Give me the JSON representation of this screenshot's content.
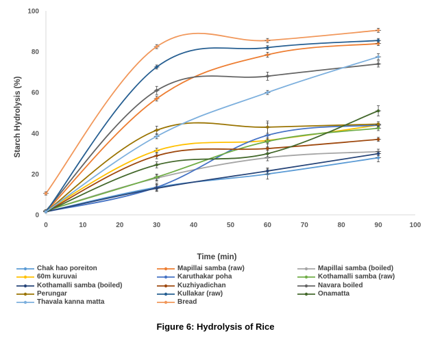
{
  "caption": "Figure  6: Hydrolysis of Rice",
  "chart_data": {
    "type": "line",
    "xlabel": "Time (min)",
    "ylabel": "Starch Hydrolysis (%)",
    "xlim": [
      0,
      100
    ],
    "ylim": [
      0,
      100
    ],
    "xticks": [
      0,
      10,
      20,
      30,
      40,
      50,
      60,
      70,
      80,
      90,
      100
    ],
    "yticks": [
      0,
      20,
      40,
      60,
      80,
      100
    ],
    "grid": false,
    "legend_position": "bottom",
    "x": [
      0,
      30,
      60,
      90
    ],
    "series": [
      {
        "name": "Chak hao poreiton",
        "color": "#5b9bd5",
        "values": [
          1.5,
          13.5,
          20,
          28
        ],
        "errors": [
          0.5,
          1.5,
          2.5,
          2
        ]
      },
      {
        "name": "Mapillai samba (raw)",
        "color": "#ed7d31",
        "values": [
          1.5,
          57,
          78.5,
          84
        ],
        "errors": [
          0.5,
          1.2,
          1.2,
          1
        ]
      },
      {
        "name": "Mapillai samba (boiled)",
        "color": "#a5a5a5",
        "values": [
          2,
          18,
          28,
          31
        ],
        "errors": [
          0.5,
          1.5,
          1.5,
          1.2
        ]
      },
      {
        "name": "60m kuruvai",
        "color": "#ffc000",
        "values": [
          2,
          31.5,
          36.5,
          44
        ],
        "errors": [
          0.5,
          1.2,
          1.2,
          1
        ]
      },
      {
        "name": "Karuthakar poha",
        "color": "#4472c4",
        "values": [
          1.5,
          13.5,
          39,
          44
        ],
        "errors": [
          0.5,
          2,
          6,
          1
        ]
      },
      {
        "name": "Kothamalli samba (raw)",
        "color": "#70ad47",
        "values": [
          2,
          18.5,
          36,
          42.5
        ],
        "errors": [
          0.5,
          1.5,
          1.2,
          1.2
        ]
      },
      {
        "name": "Kothamalli samba (boiled)",
        "color": "#264478",
        "values": [
          1.5,
          13,
          21.5,
          30
        ],
        "errors": [
          0.5,
          1.5,
          1.5,
          1
        ]
      },
      {
        "name": "Kuzhiyadichan",
        "color": "#9e480e",
        "values": [
          1.5,
          29,
          32.5,
          37
        ],
        "errors": [
          0.5,
          1.5,
          1,
          1
        ]
      },
      {
        "name": "Navara boiled",
        "color": "#636363",
        "values": [
          2,
          61,
          68,
          74
        ],
        "errors": [
          0.5,
          2,
          2,
          1.5
        ]
      },
      {
        "name": "Perungar",
        "color": "#997300",
        "values": [
          1.5,
          41.5,
          43,
          44.5
        ],
        "errors": [
          0.5,
          2,
          3,
          1.2
        ]
      },
      {
        "name": "Kullakar (raw)",
        "color": "#255e91",
        "values": [
          1.5,
          72.5,
          82,
          85.5
        ],
        "errors": [
          0.5,
          1,
          1,
          1
        ]
      },
      {
        "name": "Onamatta",
        "color": "#43682b",
        "values": [
          1.5,
          24.5,
          30,
          51
        ],
        "errors": [
          0.5,
          1.5,
          1.5,
          2.5
        ]
      },
      {
        "name": "Thavala kanna matta",
        "color": "#7cafdd",
        "values": [
          1.5,
          38.5,
          60,
          77.5
        ],
        "errors": [
          0.5,
          1.2,
          1,
          1.5
        ]
      },
      {
        "name": "Bread",
        "color": "#f1975a",
        "values": [
          10.5,
          82.5,
          85.5,
          90.5
        ],
        "errors": [
          0.8,
          1,
          1,
          1
        ]
      }
    ]
  }
}
